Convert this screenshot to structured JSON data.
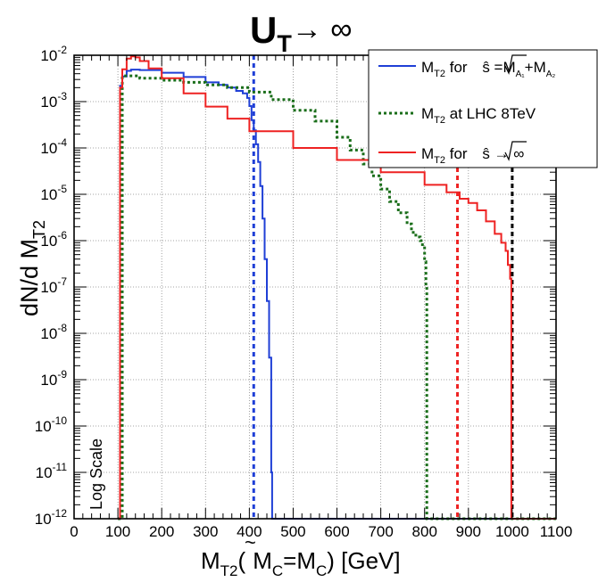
{
  "chart_data": {
    "type": "line",
    "title_main": "U",
    "title_sub": "T",
    "title_arrow": "→ ∞",
    "xlabel": {
      "main": "M",
      "sub": "T2",
      "rest_open": "(",
      "tilde_m": "M",
      "tilde_sub": "C",
      "eq": "=M",
      "eq_sub": "C",
      "rest_close": ") [GeV]"
    },
    "ylabel": {
      "main": "dN/d M",
      "sub": "T2"
    },
    "x_ticks": [
      "0",
      "100",
      "200",
      "300",
      "400",
      "500",
      "600",
      "700",
      "800",
      "900",
      "1000",
      "1100"
    ],
    "y_tick_exponents": [
      "-12",
      "-11",
      "-10",
      "-9",
      "-8",
      "-7",
      "-6",
      "-5",
      "-4",
      "-3",
      "-2"
    ],
    "y_tick_base": "10",
    "xlim": [
      0,
      1100
    ],
    "ylim_log10": [
      -12,
      -2
    ],
    "y_scale": "log",
    "grid": true,
    "annotation": "Log Scale",
    "legend_position": "top-right",
    "legend": [
      {
        "name": "M_T2 for √ŝ = M_A1 + M_A2",
        "label_main": "M",
        "label_sub": "T2",
        "label_rest": " for ",
        "sqrt_arg": "ŝ",
        "tail_eq": " =M",
        "tail_sub1": "A₁",
        "tail_plus": "+M",
        "tail_sub2": "A₂",
        "color": "#1f3fd6",
        "style": "solid"
      },
      {
        "name": "M_T2 at LHC 8TeV",
        "label_main": "M",
        "label_sub": "T2",
        "label_rest": " at LHC 8TeV",
        "color": "#1a6e1a",
        "style": "dotted"
      },
      {
        "name": "M_T2 for √ŝ → ∞",
        "label_main": "M",
        "label_sub": "T2",
        "label_rest": " for ",
        "sqrt_arg": "ŝ",
        "tail_arrow": " → ∞",
        "color": "#ee2222",
        "style": "solid"
      }
    ],
    "series": [
      {
        "color": "#1f3fd6",
        "style": "solid",
        "x": [
          100,
          105,
          110,
          120,
          130,
          150,
          200,
          250,
          300,
          330,
          350,
          370,
          385,
          395,
          400,
          405,
          410,
          415,
          420,
          425,
          430,
          435,
          440,
          445,
          450,
          452,
          1100
        ],
        "y": [
          1e-12,
          0.0022,
          0.0035,
          0.0046,
          0.0049,
          0.0048,
          0.0042,
          0.0034,
          0.0026,
          0.0023,
          0.002,
          0.0017,
          0.0015,
          0.0012,
          0.0008,
          0.0004,
          0.00024,
          0.00012,
          5e-05,
          1.5e-05,
          3e-06,
          4e-07,
          5e-08,
          3e-09,
          1e-11,
          1e-12,
          1e-12
        ]
      },
      {
        "color": "#1a6e1a",
        "style": "dotted",
        "x": [
          100,
          110,
          150,
          200,
          250,
          300,
          350,
          400,
          450,
          500,
          550,
          600,
          630,
          660,
          680,
          700,
          720,
          740,
          760,
          770,
          780,
          790,
          795,
          800,
          803,
          805,
          1100
        ],
        "y": [
          1e-12,
          0.0036,
          0.0032,
          0.0029,
          0.0026,
          0.0023,
          0.002,
          0.0016,
          0.0011,
          0.00065,
          0.00038,
          0.00017,
          9e-05,
          4.5e-05,
          2.5e-05,
          1.3e-05,
          7e-06,
          4e-06,
          2.3e-06,
          1.5e-06,
          1.2e-06,
          1e-06,
          7e-07,
          3.5e-07,
          1e-07,
          1e-12,
          1e-12
        ]
      },
      {
        "color": "#ee2222",
        "style": "solid",
        "x": [
          100,
          105,
          110,
          120,
          130,
          140,
          150,
          170,
          200,
          250,
          300,
          350,
          400,
          500,
          600,
          700,
          800,
          850,
          880,
          900,
          920,
          940,
          960,
          975,
          985,
          990,
          995,
          998,
          1100
        ],
        "y": [
          1e-12,
          0.002,
          0.005,
          0.0085,
          0.0095,
          0.009,
          0.0075,
          0.0052,
          0.0032,
          0.0015,
          0.00078,
          0.00043,
          0.00023,
          0.0001,
          5.5e-05,
          3e-05,
          1.6e-05,
          1.1e-05,
          8e-06,
          6.5e-06,
          4.5e-06,
          2.6e-06,
          1.4e-06,
          9e-07,
          6e-07,
          3e-07,
          1.5e-07,
          1e-12,
          1e-12
        ]
      }
    ],
    "vlines": [
      {
        "x": 410,
        "color": "#1f3fd6"
      },
      {
        "x": 875,
        "color": "#ee2222"
      },
      {
        "x": 1000,
        "color": "#000000"
      }
    ]
  }
}
